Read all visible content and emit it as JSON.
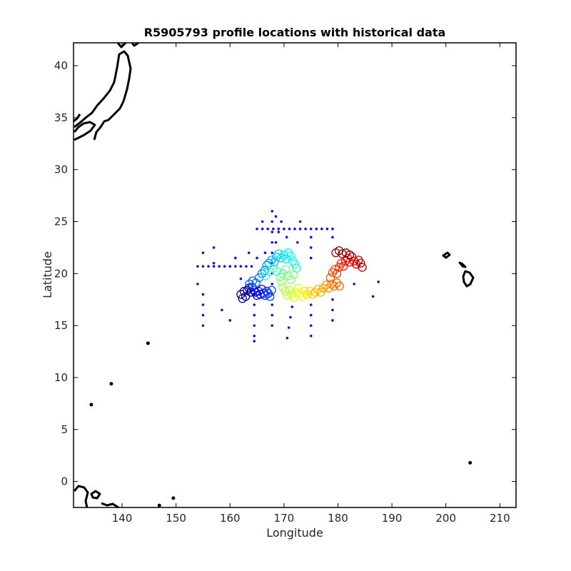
{
  "chart_data": {
    "type": "scatter",
    "title": "R5905793 profile locations with historical data",
    "xlabel": "Longitude",
    "ylabel": "Latitude",
    "xlim": [
      131,
      213
    ],
    "ylim": [
      -2.5,
      42.2
    ],
    "xticks": [
      140,
      150,
      160,
      170,
      180,
      190,
      200,
      210
    ],
    "yticks": [
      0,
      5,
      10,
      15,
      20,
      25,
      30,
      35,
      40
    ],
    "grid": false,
    "legend": "none",
    "colors": {
      "historical": "#1010e0",
      "coastline": "#000000",
      "profile_colormap": [
        "#00008f",
        "#0000ff",
        "#0080ff",
        "#00ffff",
        "#80ff80",
        "#ffff00",
        "#ff8000",
        "#ff0000",
        "#800000"
      ]
    },
    "series": [
      {
        "marker": "dot",
        "color": "#1010e0",
        "points": [
          [
            154,
            20.7
          ],
          [
            155,
            20.7
          ],
          [
            156,
            20.7
          ],
          [
            157,
            20.7
          ],
          [
            158,
            20.7
          ],
          [
            159,
            20.7
          ],
          [
            160,
            20.7
          ],
          [
            161,
            20.7
          ],
          [
            162,
            20.7
          ],
          [
            163,
            20.7
          ],
          [
            164,
            20.7
          ],
          [
            165,
            24.3
          ],
          [
            166,
            24.3
          ],
          [
            167,
            24.3
          ],
          [
            168,
            24.3
          ],
          [
            169,
            24.3
          ],
          [
            170,
            24.3
          ],
          [
            171,
            24.3
          ],
          [
            172,
            24.3
          ],
          [
            173,
            24.3
          ],
          [
            174,
            24.3
          ],
          [
            175,
            24.3
          ],
          [
            176,
            24.3
          ],
          [
            177,
            24.3
          ],
          [
            178,
            24.3
          ],
          [
            179,
            24.3
          ],
          [
            167.8,
            26.0
          ],
          [
            167.8,
            25.0
          ],
          [
            167.8,
            24.0
          ],
          [
            167.8,
            23.0
          ],
          [
            167.8,
            22.0
          ],
          [
            167.8,
            21.0
          ],
          [
            167.8,
            20.0
          ],
          [
            167.8,
            19.0
          ],
          [
            167.8,
            18.0
          ],
          [
            167.8,
            17.0
          ],
          [
            167.8,
            16.0
          ],
          [
            167.8,
            15.0
          ],
          [
            164.5,
            18.0
          ],
          [
            164.5,
            17.0
          ],
          [
            164.5,
            16.0
          ],
          [
            164.5,
            15.0
          ],
          [
            164.5,
            14.0
          ],
          [
            164.5,
            13.5
          ],
          [
            169.5,
            25.0
          ],
          [
            169.0,
            24.0
          ],
          [
            168.5,
            23.0
          ],
          [
            171.5,
            16.8
          ],
          [
            171.2,
            15.8
          ],
          [
            170.9,
            14.8
          ],
          [
            170.6,
            13.8
          ],
          [
            175,
            23.5
          ],
          [
            175,
            22.5
          ],
          [
            175,
            21.5
          ],
          [
            175,
            17.0
          ],
          [
            175,
            16.0
          ],
          [
            175,
            15.0
          ],
          [
            175,
            14.0
          ],
          [
            179,
            23.5
          ],
          [
            179,
            17.5
          ],
          [
            179,
            16.5
          ],
          [
            179,
            15.5
          ],
          [
            155,
            22.0
          ],
          [
            155,
            18.0
          ],
          [
            155,
            17.0
          ],
          [
            155,
            16.0
          ],
          [
            155,
            15.0
          ],
          [
            154,
            19.0
          ],
          [
            157,
            22.5
          ],
          [
            157,
            21.0
          ],
          [
            158.5,
            16.5
          ],
          [
            160,
            15.5
          ],
          [
            161,
            21.5
          ],
          [
            163.5,
            22.0
          ],
          [
            162,
            19.5
          ],
          [
            166,
            25.0
          ],
          [
            168.5,
            25.5
          ],
          [
            170.5,
            23.5
          ],
          [
            173,
            25.0
          ],
          [
            172.5,
            23.0
          ],
          [
            186.5,
            17.8
          ],
          [
            187.5,
            19.2
          ],
          [
            183,
            19.0
          ],
          [
            165,
            21.5
          ],
          [
            166.5,
            22.0
          ]
        ]
      },
      {
        "marker": "circle",
        "color_scale": "jet",
        "points": [
          [
            162,
            18.0
          ],
          [
            162.3,
            17.6
          ],
          [
            162.6,
            18.3
          ],
          [
            162.9,
            17.8
          ],
          [
            163.2,
            18.4
          ],
          [
            163.5,
            18.6
          ],
          [
            163.8,
            18.2
          ],
          [
            164.1,
            18.7
          ],
          [
            164.4,
            18.4
          ],
          [
            164.7,
            18.2
          ],
          [
            165.0,
            17.9
          ],
          [
            165.3,
            18.3
          ],
          [
            165.6,
            18.0
          ],
          [
            165.9,
            18.5
          ],
          [
            166.2,
            18.1
          ],
          [
            166.5,
            17.9
          ],
          [
            166.8,
            18.3
          ],
          [
            167.1,
            18.1
          ],
          [
            167.4,
            17.8
          ],
          [
            167.7,
            18.4
          ],
          [
            163.6,
            19.0
          ],
          [
            164.2,
            19.3
          ],
          [
            164.8,
            19.1
          ],
          [
            165.4,
            19.6
          ],
          [
            165.9,
            20.0
          ],
          [
            166.4,
            20.3
          ],
          [
            166.8,
            20.8
          ],
          [
            167.2,
            21.0
          ],
          [
            167.7,
            21.3
          ],
          [
            168.2,
            21.1
          ],
          [
            168.6,
            21.6
          ],
          [
            169.0,
            21.9
          ],
          [
            169.5,
            21.5
          ],
          [
            170.0,
            21.8
          ],
          [
            170.4,
            21.4
          ],
          [
            170.8,
            22.0
          ],
          [
            171.2,
            21.7
          ],
          [
            171.6,
            21.2
          ],
          [
            172.0,
            20.9
          ],
          [
            172.3,
            20.5
          ],
          [
            166.6,
            19.8
          ],
          [
            167.3,
            20.2
          ],
          [
            168.0,
            20.5
          ],
          [
            168.7,
            20.2
          ],
          [
            169.3,
            19.7
          ],
          [
            169.8,
            20.0
          ],
          [
            170.3,
            20.4
          ],
          [
            170.8,
            19.8
          ],
          [
            171.3,
            19.4
          ],
          [
            171.8,
            19.9
          ],
          [
            169.5,
            19.2
          ],
          [
            169.8,
            18.7
          ],
          [
            170.2,
            18.3
          ],
          [
            170.6,
            17.9
          ],
          [
            171.0,
            18.4
          ],
          [
            171.4,
            18.0
          ],
          [
            171.8,
            17.7
          ],
          [
            172.2,
            18.2
          ],
          [
            172.6,
            18.6
          ],
          [
            173.0,
            18.1
          ],
          [
            173.4,
            17.8
          ],
          [
            173.8,
            18.3
          ],
          [
            174.3,
            18.0
          ],
          [
            174.8,
            18.3
          ],
          [
            175.3,
            18.0
          ],
          [
            175.8,
            18.2
          ],
          [
            176.3,
            18.5
          ],
          [
            176.8,
            18.2
          ],
          [
            177.3,
            18.6
          ],
          [
            177.8,
            18.9
          ],
          [
            178.3,
            18.6
          ],
          [
            178.8,
            19.0
          ],
          [
            179.3,
            18.8
          ],
          [
            179.8,
            19.1
          ],
          [
            180.3,
            18.8
          ],
          [
            178.6,
            19.6
          ],
          [
            179.0,
            20.1
          ],
          [
            179.4,
            20.4
          ],
          [
            179.8,
            20.0
          ],
          [
            180.2,
            20.6
          ],
          [
            180.6,
            21.0
          ],
          [
            181.0,
            20.7
          ],
          [
            181.4,
            21.2
          ],
          [
            181.8,
            21.5
          ],
          [
            182.2,
            21.1
          ],
          [
            182.6,
            21.6
          ],
          [
            183.0,
            21.2
          ],
          [
            183.4,
            20.9
          ],
          [
            183.8,
            21.3
          ],
          [
            184.2,
            21.0
          ],
          [
            184.5,
            20.6
          ],
          [
            179.6,
            22.0
          ],
          [
            180.2,
            22.2
          ],
          [
            180.8,
            21.9
          ],
          [
            181.5,
            22.0
          ],
          [
            182.2,
            21.8
          ]
        ]
      }
    ]
  }
}
